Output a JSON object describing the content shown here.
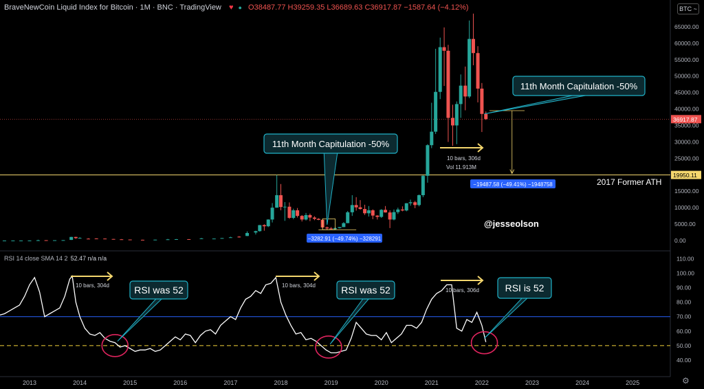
{
  "header": {
    "symbol": "BraveNewCoin Liquid Index for Bitcoin · 1M · BNC · TradingView",
    "ohlc": "O38487.77  H39259.35  L36689.63  C36917.87  −1587.64 (−4.12%)",
    "currency_button": "BTC ~"
  },
  "rsi_header": {
    "label": "RSI 14 close SMA 14 2",
    "values": "52.47  n/a  n/a"
  },
  "colors": {
    "up": "#26a69a",
    "down": "#ef5350",
    "accent_yellow": "#f5d76e",
    "callout_border": "#20b2c8",
    "callout_bg": "#0c2a30",
    "rsi_line": "#ffffff",
    "rsi_70_line": "#2962ff",
    "rsi_50_line": "#f5d33a",
    "measure_box": "#2962ff",
    "circle": "#e0245e"
  },
  "annotations": {
    "callout_2018": "11th Month Capitulation -50%",
    "callout_2022": "11th Month Capitulation -50%",
    "former_ath_label": "2017 Former ATH",
    "handle": "@jesseolson",
    "measure_2018": "−3282.91 (−49.74%) −328291",
    "measure_2022": "−19487.58 (−49.41%) −1948758",
    "bars_price": "10 bars, 306d",
    "vol_price": "Vol 11.913M",
    "rsi_bars_1": "10 bars, 304d",
    "rsi_bars_2": "10 bars, 304d",
    "rsi_bars_3": "10 bars, 306d",
    "rsi_call_1": "RSI was 52",
    "rsi_call_2": "RSI was 52",
    "rsi_call_3": "RSI is 52"
  },
  "chart_data": [
    {
      "type": "candlestick",
      "title": "BraveNewCoin Liquid Index for Bitcoin · 1M",
      "x_axis_ticks": [
        "2013",
        "2014",
        "2015",
        "2016",
        "2017",
        "2018",
        "2019",
        "2020",
        "2021",
        "2022",
        "2023",
        "2024",
        "2025"
      ],
      "y_axis_ticks": [
        "65000.00",
        "60000.00",
        "55000.00",
        "50000.00",
        "45000.00",
        "40000.00",
        "35000.00",
        "30000.00",
        "25000.00",
        "20000.00",
        "15000.00",
        "10000.00",
        "5000.00",
        "0.00"
      ],
      "ylim": [
        -2500,
        70000
      ],
      "price_labels": [
        {
          "value": 36917.87,
          "text": "36917.87",
          "color": "#ef5350"
        },
        {
          "value": 19950.11,
          "text": "19950.11",
          "color": "#f5d76e"
        }
      ],
      "horizontal_line": 19950.11,
      "candles": [
        {
          "t": 2012.0,
          "o": 5,
          "h": 7,
          "l": 4,
          "c": 6
        },
        {
          "t": 2012.17,
          "o": 6,
          "h": 8,
          "l": 5,
          "c": 7
        },
        {
          "t": 2012.33,
          "o": 7,
          "h": 8,
          "l": 6,
          "c": 7
        },
        {
          "t": 2012.5,
          "o": 7,
          "h": 12,
          "l": 7,
          "c": 10
        },
        {
          "t": 2012.67,
          "o": 10,
          "h": 13,
          "l": 10,
          "c": 12
        },
        {
          "t": 2012.83,
          "o": 12,
          "h": 13,
          "l": 11,
          "c": 13
        },
        {
          "t": 2013.0,
          "o": 13,
          "h": 21,
          "l": 13,
          "c": 20
        },
        {
          "t": 2013.17,
          "o": 33,
          "h": 260,
          "l": 33,
          "c": 93
        },
        {
          "t": 2013.33,
          "o": 110,
          "h": 130,
          "l": 70,
          "c": 100
        },
        {
          "t": 2013.5,
          "o": 97,
          "h": 110,
          "l": 65,
          "c": 105
        },
        {
          "t": 2013.67,
          "o": 125,
          "h": 145,
          "l": 110,
          "c": 138
        },
        {
          "t": 2013.83,
          "o": 200,
          "h": 1150,
          "l": 180,
          "c": 1100
        },
        {
          "t": 2013.92,
          "o": 1100,
          "h": 1160,
          "l": 520,
          "c": 750
        },
        {
          "t": 2014.0,
          "o": 750,
          "h": 1000,
          "l": 720,
          "c": 800
        },
        {
          "t": 2014.17,
          "o": 580,
          "h": 700,
          "l": 430,
          "c": 450
        },
        {
          "t": 2014.33,
          "o": 630,
          "h": 680,
          "l": 550,
          "c": 600
        },
        {
          "t": 2014.5,
          "o": 600,
          "h": 650,
          "l": 560,
          "c": 580
        },
        {
          "t": 2014.67,
          "o": 480,
          "h": 510,
          "l": 370,
          "c": 390
        },
        {
          "t": 2014.83,
          "o": 380,
          "h": 460,
          "l": 350,
          "c": 375
        },
        {
          "t": 2015.0,
          "o": 320,
          "h": 320,
          "l": 160,
          "c": 220
        },
        {
          "t": 2015.25,
          "o": 240,
          "h": 260,
          "l": 220,
          "c": 235
        },
        {
          "t": 2015.5,
          "o": 260,
          "h": 300,
          "l": 250,
          "c": 280
        },
        {
          "t": 2015.75,
          "o": 240,
          "h": 500,
          "l": 230,
          "c": 370
        },
        {
          "t": 2015.92,
          "o": 430,
          "h": 470,
          "l": 350,
          "c": 430
        },
        {
          "t": 2016.17,
          "o": 430,
          "h": 440,
          "l": 400,
          "c": 415
        },
        {
          "t": 2016.42,
          "o": 530,
          "h": 780,
          "l": 520,
          "c": 670
        },
        {
          "t": 2016.67,
          "o": 610,
          "h": 630,
          "l": 590,
          "c": 610
        },
        {
          "t": 2016.83,
          "o": 700,
          "h": 780,
          "l": 690,
          "c": 760
        },
        {
          "t": 2017.0,
          "o": 960,
          "h": 1150,
          "l": 850,
          "c": 1000
        },
        {
          "t": 2017.17,
          "o": 1190,
          "h": 1350,
          "l": 900,
          "c": 1080
        },
        {
          "t": 2017.33,
          "o": 1400,
          "h": 2800,
          "l": 1350,
          "c": 2300
        },
        {
          "t": 2017.5,
          "o": 2450,
          "h": 3000,
          "l": 1850,
          "c": 2870
        },
        {
          "t": 2017.58,
          "o": 2870,
          "h": 4750,
          "l": 2700,
          "c": 4700
        },
        {
          "t": 2017.67,
          "o": 4700,
          "h": 4950,
          "l": 3000,
          "c": 4350
        },
        {
          "t": 2017.75,
          "o": 4350,
          "h": 6450,
          "l": 4100,
          "c": 6400
        },
        {
          "t": 2017.83,
          "o": 6400,
          "h": 11400,
          "l": 5500,
          "c": 10000
        },
        {
          "t": 2017.92,
          "o": 10000,
          "h": 19950,
          "l": 10000,
          "c": 13800
        },
        {
          "t": 2018.0,
          "o": 13800,
          "h": 17200,
          "l": 9200,
          "c": 10200
        },
        {
          "t": 2018.08,
          "o": 10200,
          "h": 11700,
          "l": 6000,
          "c": 10300
        },
        {
          "t": 2018.17,
          "o": 10300,
          "h": 11600,
          "l": 6600,
          "c": 6900
        },
        {
          "t": 2018.25,
          "o": 6900,
          "h": 9700,
          "l": 6500,
          "c": 9200
        },
        {
          "t": 2018.33,
          "o": 9200,
          "h": 9900,
          "l": 7000,
          "c": 7500
        },
        {
          "t": 2018.42,
          "o": 7500,
          "h": 7750,
          "l": 5800,
          "c": 6400
        },
        {
          "t": 2018.5,
          "o": 6400,
          "h": 8400,
          "l": 6100,
          "c": 7750
        },
        {
          "t": 2018.58,
          "o": 7750,
          "h": 8200,
          "l": 5900,
          "c": 7000
        },
        {
          "t": 2018.67,
          "o": 7000,
          "h": 7400,
          "l": 6200,
          "c": 6600
        },
        {
          "t": 2018.75,
          "o": 6600,
          "h": 6800,
          "l": 6200,
          "c": 6300
        },
        {
          "t": 2018.83,
          "o": 6300,
          "h": 6500,
          "l": 3700,
          "c": 4000
        },
        {
          "t": 2018.92,
          "o": 4000,
          "h": 4250,
          "l": 3200,
          "c": 3700
        },
        {
          "t": 2019.0,
          "o": 3700,
          "h": 4100,
          "l": 3400,
          "c": 3450
        },
        {
          "t": 2019.08,
          "o": 3450,
          "h": 4200,
          "l": 3400,
          "c": 3800
        },
        {
          "t": 2019.17,
          "o": 3800,
          "h": 4100,
          "l": 3700,
          "c": 4100
        },
        {
          "t": 2019.25,
          "o": 4100,
          "h": 5600,
          "l": 4100,
          "c": 5300
        },
        {
          "t": 2019.33,
          "o": 5300,
          "h": 9000,
          "l": 5300,
          "c": 8600
        },
        {
          "t": 2019.42,
          "o": 8600,
          "h": 13800,
          "l": 7500,
          "c": 10800
        },
        {
          "t": 2019.5,
          "o": 10800,
          "h": 13200,
          "l": 9100,
          "c": 10100
        },
        {
          "t": 2019.58,
          "o": 10100,
          "h": 12300,
          "l": 9400,
          "c": 9600
        },
        {
          "t": 2019.67,
          "o": 9600,
          "h": 10900,
          "l": 7800,
          "c": 8300
        },
        {
          "t": 2019.75,
          "o": 8300,
          "h": 10500,
          "l": 7300,
          "c": 9200
        },
        {
          "t": 2019.83,
          "o": 9200,
          "h": 9500,
          "l": 6500,
          "c": 7600
        },
        {
          "t": 2019.92,
          "o": 7600,
          "h": 7700,
          "l": 6400,
          "c": 7200
        },
        {
          "t": 2020.0,
          "o": 7200,
          "h": 9550,
          "l": 6900,
          "c": 9350
        },
        {
          "t": 2020.08,
          "o": 9350,
          "h": 10500,
          "l": 8500,
          "c": 8550
        },
        {
          "t": 2020.17,
          "o": 8550,
          "h": 9200,
          "l": 3800,
          "c": 6400
        },
        {
          "t": 2020.25,
          "o": 6400,
          "h": 9450,
          "l": 6150,
          "c": 8650
        },
        {
          "t": 2020.33,
          "o": 8650,
          "h": 10000,
          "l": 8100,
          "c": 9450
        },
        {
          "t": 2020.42,
          "o": 9450,
          "h": 10400,
          "l": 8900,
          "c": 9150
        },
        {
          "t": 2020.5,
          "o": 9150,
          "h": 11400,
          "l": 8900,
          "c": 11350
        },
        {
          "t": 2020.58,
          "o": 11350,
          "h": 12450,
          "l": 10600,
          "c": 11650
        },
        {
          "t": 2020.67,
          "o": 11650,
          "h": 12050,
          "l": 9850,
          "c": 10800
        },
        {
          "t": 2020.75,
          "o": 10800,
          "h": 14000,
          "l": 10400,
          "c": 13800
        },
        {
          "t": 2020.83,
          "o": 13800,
          "h": 19800,
          "l": 13200,
          "c": 19700
        },
        {
          "t": 2020.92,
          "o": 19700,
          "h": 29300,
          "l": 17600,
          "c": 29000
        },
        {
          "t": 2021.0,
          "o": 29000,
          "h": 41900,
          "l": 28100,
          "c": 33100
        },
        {
          "t": 2021.08,
          "o": 33100,
          "h": 58300,
          "l": 32400,
          "c": 45200
        },
        {
          "t": 2021.17,
          "o": 45200,
          "h": 61700,
          "l": 43000,
          "c": 58800
        },
        {
          "t": 2021.25,
          "o": 58800,
          "h": 64800,
          "l": 47000,
          "c": 57700
        },
        {
          "t": 2021.33,
          "o": 57700,
          "h": 59500,
          "l": 30000,
          "c": 37300
        },
        {
          "t": 2021.42,
          "o": 37300,
          "h": 41300,
          "l": 28800,
          "c": 35000
        },
        {
          "t": 2021.5,
          "o": 35000,
          "h": 42300,
          "l": 29300,
          "c": 41500
        },
        {
          "t": 2021.58,
          "o": 41500,
          "h": 50500,
          "l": 37300,
          "c": 47100
        },
        {
          "t": 2021.67,
          "o": 47100,
          "h": 52900,
          "l": 39600,
          "c": 43800
        },
        {
          "t": 2021.75,
          "o": 43800,
          "h": 66900,
          "l": 43300,
          "c": 61300
        },
        {
          "t": 2021.83,
          "o": 61300,
          "h": 69000,
          "l": 53300,
          "c": 57000
        },
        {
          "t": 2021.92,
          "o": 57000,
          "h": 59100,
          "l": 42000,
          "c": 46200
        },
        {
          "t": 2022.0,
          "o": 46200,
          "h": 47900,
          "l": 33000,
          "c": 38500
        },
        {
          "t": 2022.08,
          "o": 38487.77,
          "h": 39259.35,
          "l": 36689.63,
          "c": 36917.87
        }
      ]
    },
    {
      "type": "line",
      "title": "RSI 14 close SMA 14 2",
      "y_axis_ticks": [
        "110.00",
        "100.00",
        "90.00",
        "80.00",
        "70.00",
        "60.00",
        "50.00",
        "40.00"
      ],
      "ylim": [
        30,
        114
      ],
      "hlines": [
        {
          "value": 70,
          "color": "#2962ff",
          "style": "solid"
        },
        {
          "value": 50,
          "color": "#f5d33a",
          "style": "dashed"
        }
      ],
      "series": [
        {
          "x": [
            2012.0,
            2012.1,
            2012.2,
            2012.3,
            2012.4,
            2012.5,
            2012.6,
            2012.7,
            2012.8,
            2012.9,
            2013.0,
            2013.1,
            2013.2,
            2013.3,
            2013.4,
            2013.5,
            2013.6,
            2013.7,
            2013.8,
            2013.85,
            2013.92,
            2014.0,
            2014.1,
            2014.2,
            2014.3,
            2014.4,
            2014.5,
            2014.6,
            2014.7,
            2014.8,
            2014.9,
            2015.0,
            2015.1,
            2015.2,
            2015.3,
            2015.4,
            2015.5,
            2015.6,
            2015.7,
            2015.8,
            2015.9,
            2016.0,
            2016.1,
            2016.2,
            2016.3,
            2016.4,
            2016.5,
            2016.6,
            2016.7,
            2016.8,
            2016.9,
            2017.0,
            2017.1,
            2017.2,
            2017.3,
            2017.4,
            2017.5,
            2017.6,
            2017.7,
            2017.8,
            2017.9,
            2018.0,
            2018.1,
            2018.2,
            2018.3,
            2018.4,
            2018.5,
            2018.6,
            2018.7,
            2018.8,
            2018.9,
            2019.0,
            2019.1,
            2019.2,
            2019.3,
            2019.4,
            2019.5,
            2019.6,
            2019.7,
            2019.8,
            2019.9,
            2020.0,
            2020.1,
            2020.2,
            2020.3,
            2020.4,
            2020.5,
            2020.6,
            2020.7,
            2020.8,
            2020.9,
            2021.0,
            2021.1,
            2021.2,
            2021.3,
            2021.4,
            2021.5,
            2021.6,
            2021.7,
            2021.8,
            2021.9,
            2022.0,
            2022.08
          ],
          "values": [
            63,
            66,
            68,
            66,
            71,
            72,
            74,
            76,
            78,
            84,
            92,
            97,
            87,
            70,
            72,
            74,
            76,
            84,
            96,
            98,
            80,
            70,
            62,
            58,
            57,
            59,
            55,
            53,
            52,
            49,
            50,
            48,
            46,
            47,
            47,
            48,
            46,
            47,
            50,
            53,
            56,
            54,
            58,
            57,
            52,
            57,
            60,
            61,
            58,
            64,
            67,
            70,
            68,
            76,
            82,
            84,
            88,
            86,
            92,
            93,
            97,
            80,
            71,
            64,
            58,
            59,
            54,
            55,
            53,
            50,
            47,
            45,
            45,
            46,
            47,
            55,
            66,
            62,
            58,
            57,
            57,
            54,
            59,
            52,
            55,
            58,
            64,
            64,
            62,
            66,
            75,
            82,
            86,
            88,
            92,
            92,
            62,
            60,
            68,
            66,
            73,
            64,
            52.47
          ]
        }
      ]
    }
  ]
}
